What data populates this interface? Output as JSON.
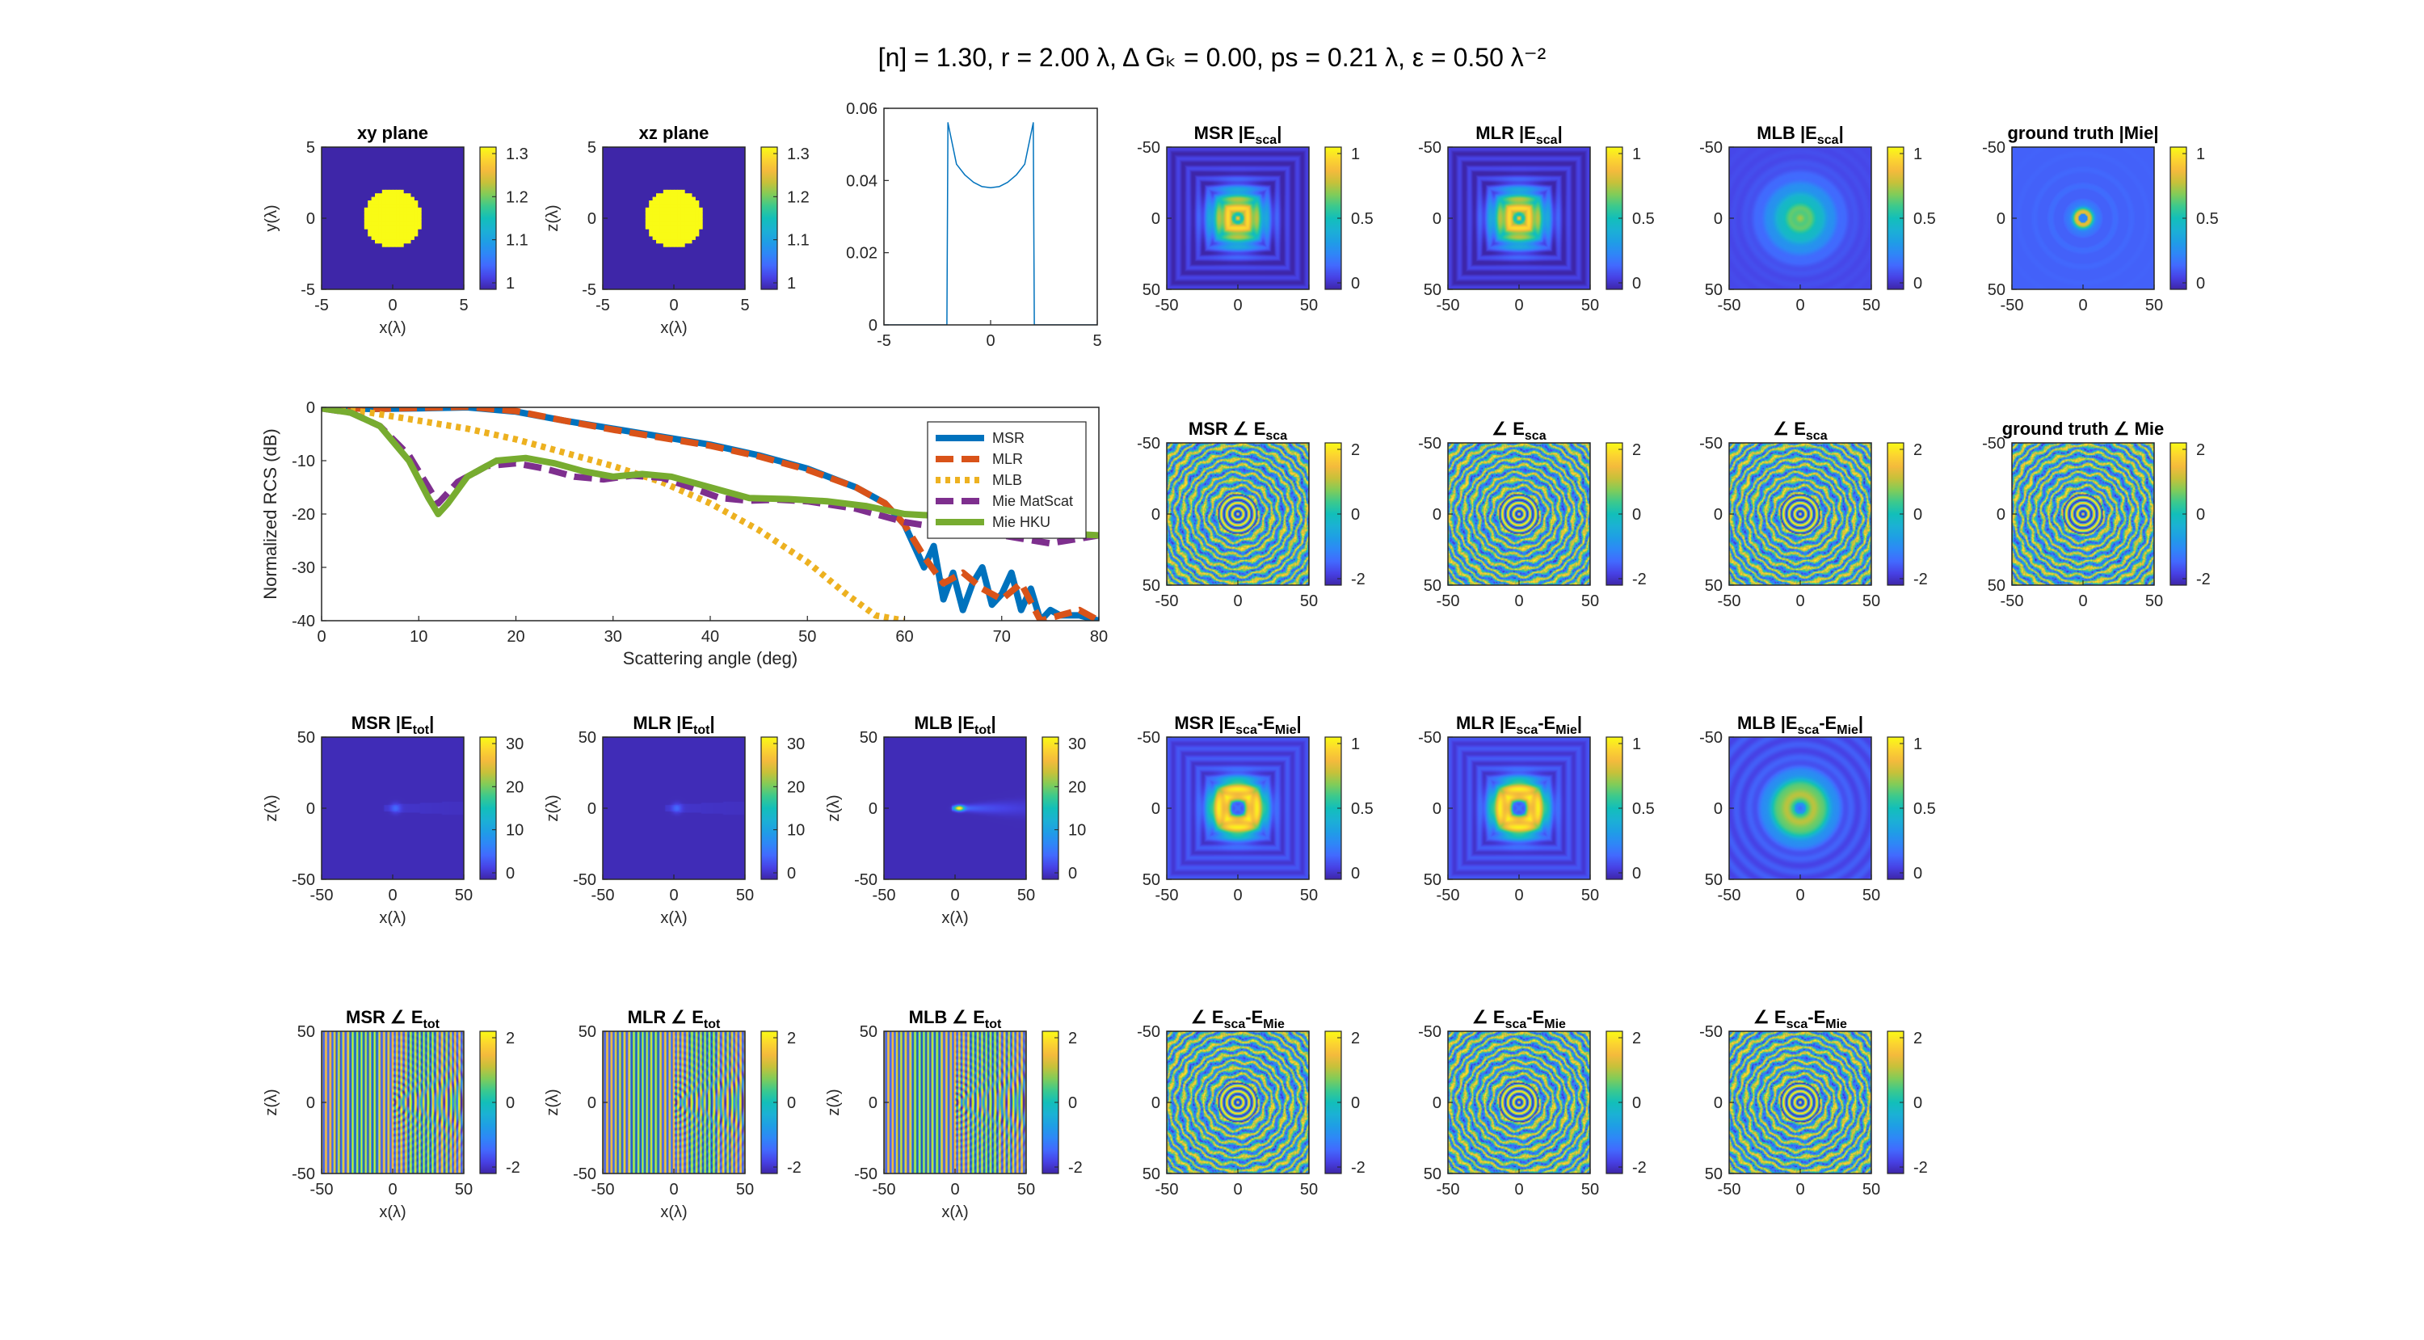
{
  "figure_title": "[n] = 1.30, r = 2.00 λ, Δ Gₖ = 0.00, ps = 0.21 λ, ε = 0.50 λ⁻²",
  "colors": {
    "parula": [
      "#3e26a8",
      "#4741e5",
      "#4269fe",
      "#2e87f7",
      "#1f9ee5",
      "#1bb1d4",
      "#12bfb9",
      "#3bc98e",
      "#81cc59",
      "#c6c13a",
      "#f4ba3c",
      "#fcd62f",
      "#f9fb15"
    ],
    "msr": "#0072bd",
    "mlr": "#d95319",
    "mlb": "#edb120",
    "mie_matscat": "#7e2f8e",
    "mie_hku": "#77ac30"
  },
  "chart_data": [
    {
      "id": "xy-plane",
      "type": "heatmap",
      "title": "xy plane",
      "xlabel": "x(λ)",
      "ylabel": "y(λ)",
      "xlim": [
        -5,
        5
      ],
      "ylim": [
        -5,
        5
      ],
      "xticks": [
        "-5",
        "0",
        "5"
      ],
      "yticks": [
        "5",
        "0",
        "-5"
      ],
      "colorbar": {
        "ticks": [
          "1.3",
          "1.2",
          "1.1",
          "1"
        ],
        "range": [
          1,
          1.3
        ]
      },
      "pattern": "disk",
      "disk_radius": 2,
      "inside_value": 1.3,
      "outside_value": 1.0
    },
    {
      "id": "xz-plane",
      "type": "heatmap",
      "title": "xz plane",
      "xlabel": "x(λ)",
      "ylabel": "z(λ)",
      "xlim": [
        -5,
        5
      ],
      "ylim": [
        -5,
        5
      ],
      "xticks": [
        "-5",
        "0",
        "5"
      ],
      "yticks": [
        "5",
        "0",
        "-5"
      ],
      "colorbar": {
        "ticks": [
          "1.3",
          "1.2",
          "1.1",
          "1"
        ],
        "range": [
          1,
          1.3
        ]
      },
      "pattern": "disk",
      "disk_radius": 2,
      "inside_value": 1.3,
      "outside_value": 1.0
    },
    {
      "id": "profile",
      "type": "line",
      "title": "",
      "xlim": [
        -5,
        5
      ],
      "ylim": [
        0,
        0.06
      ],
      "xticks": [
        "-5",
        "0",
        "5"
      ],
      "yticks": [
        "0.06",
        "0.04",
        "0.02",
        "0"
      ],
      "x": [
        -5,
        -2.05,
        -2.0,
        -1.6,
        -1.2,
        -0.8,
        -0.4,
        0,
        0.4,
        0.8,
        1.2,
        1.6,
        2.0,
        2.05,
        5
      ],
      "y": [
        0,
        0,
        0.056,
        0.0445,
        0.0415,
        0.0395,
        0.0383,
        0.038,
        0.0383,
        0.0395,
        0.0415,
        0.0445,
        0.056,
        0,
        0
      ]
    },
    {
      "id": "msr-esca",
      "type": "heatmap",
      "title": "MSR |E<sub>sca</sub>|",
      "xlim": [
        -50,
        50
      ],
      "ylim": [
        -50,
        50
      ],
      "xticks": [
        "-50",
        "0",
        "50"
      ],
      "yticks": [
        "-50",
        "0",
        "50"
      ],
      "colorbar": {
        "ticks": [
          "1",
          "0.5",
          "0"
        ],
        "range": [
          0,
          1.2
        ]
      },
      "pattern": "mag_square"
    },
    {
      "id": "mlr-esca",
      "type": "heatmap",
      "title": "MLR |E<sub>sca</sub>|",
      "xlim": [
        -50,
        50
      ],
      "ylim": [
        -50,
        50
      ],
      "xticks": [
        "-50",
        "0",
        "50"
      ],
      "yticks": [
        "-50",
        "0",
        "50"
      ],
      "colorbar": {
        "ticks": [
          "1",
          "0.5",
          "0"
        ],
        "range": [
          0,
          1.2
        ]
      },
      "pattern": "mag_square"
    },
    {
      "id": "mlb-esca",
      "type": "heatmap",
      "title": "MLB |E<sub>sca</sub>|",
      "xlim": [
        -50,
        50
      ],
      "ylim": [
        -50,
        50
      ],
      "xticks": [
        "-50",
        "0",
        "50"
      ],
      "yticks": [
        "-50",
        "0",
        "50"
      ],
      "colorbar": {
        "ticks": [
          "1",
          "0.5",
          "0"
        ],
        "range": [
          0,
          1.2
        ]
      },
      "pattern": "mag_soft"
    },
    {
      "id": "gt-mie-mag",
      "type": "heatmap",
      "title": "ground truth |Mie|",
      "xlim": [
        -50,
        50
      ],
      "ylim": [
        -50,
        50
      ],
      "xticks": [
        "-50",
        "0",
        "50"
      ],
      "yticks": [
        "-50",
        "0",
        "50"
      ],
      "colorbar": {
        "ticks": [
          "1",
          "0.5",
          "0"
        ],
        "range": [
          0,
          1.2
        ]
      },
      "pattern": "mag_rings"
    },
    {
      "id": "rcs",
      "type": "line",
      "title": "",
      "xlabel": "Scattering angle (deg)",
      "ylabel": "Normalized RCS (dB)",
      "xlim": [
        0,
        80
      ],
      "ylim": [
        -40,
        0
      ],
      "xticks": [
        "0",
        "10",
        "20",
        "30",
        "40",
        "50",
        "60",
        "70",
        "80"
      ],
      "yticks": [
        "0",
        "-10",
        "-20",
        "-30",
        "-40"
      ],
      "legend": {
        "position": "top-right"
      },
      "series": [
        {
          "name": "MSR",
          "style": "solid",
          "x": [
            0,
            5,
            10,
            15,
            20,
            25,
            30,
            35,
            40,
            45,
            50,
            55,
            58,
            60,
            62,
            63,
            64,
            65,
            66,
            67,
            68,
            69,
            70,
            71,
            72,
            73,
            74,
            75,
            76,
            78,
            80
          ],
          "y": [
            0,
            -0.3,
            -0.2,
            0,
            -0.8,
            -2.5,
            -4,
            -5.5,
            -7,
            -9,
            -11.5,
            -15,
            -18,
            -22,
            -30,
            -26,
            -36,
            -31,
            -38,
            -33,
            -30,
            -37,
            -35,
            -31,
            -38,
            -34,
            -40,
            -38,
            -39,
            -39,
            -40
          ]
        },
        {
          "name": "MLR",
          "style": "dashed",
          "x": [
            0,
            5,
            10,
            15,
            20,
            25,
            30,
            35,
            40,
            45,
            50,
            55,
            58,
            60,
            62,
            64,
            66,
            68,
            70,
            72,
            74,
            76,
            78,
            80
          ],
          "y": [
            0,
            -0.3,
            -0.1,
            0.1,
            -0.7,
            -2.5,
            -4.2,
            -5.7,
            -7.2,
            -9.2,
            -11.7,
            -15,
            -18,
            -22,
            -28,
            -33,
            -31,
            -34,
            -36,
            -33,
            -40,
            -39,
            -38,
            -40
          ]
        },
        {
          "name": "MLB",
          "style": "dotted",
          "x": [
            0,
            5,
            10,
            15,
            20,
            25,
            30,
            35,
            40,
            45,
            50,
            54,
            57,
            60
          ],
          "y": [
            0,
            -1,
            -2.5,
            -4,
            -6,
            -8.5,
            -11,
            -14,
            -18,
            -23,
            -29,
            -35,
            -39,
            -40
          ]
        },
        {
          "name": "Mie MatScat",
          "style": "dashed",
          "x": [
            0,
            3,
            6,
            9,
            11,
            12,
            14,
            17,
            20,
            23,
            26,
            29,
            32,
            35,
            38,
            41,
            44,
            47,
            50,
            55,
            60,
            65,
            70,
            75,
            80
          ],
          "y": [
            -0.2,
            -1,
            -3.5,
            -9,
            -15,
            -18,
            -14,
            -11,
            -10.5,
            -11.5,
            -13,
            -13.5,
            -12.8,
            -13.2,
            -15,
            -17,
            -17.5,
            -17.3,
            -17.6,
            -19,
            -21.5,
            -23,
            -24,
            -25.5,
            -24
          ]
        },
        {
          "name": "Mie HKU",
          "style": "solid",
          "x": [
            0,
            3,
            6,
            9,
            11,
            12,
            13,
            15,
            18,
            21,
            24,
            27,
            30,
            33,
            36,
            40,
            44,
            48,
            52,
            56,
            60,
            65,
            70,
            75,
            80
          ],
          "y": [
            -0.2,
            -1,
            -3.5,
            -10,
            -17,
            -20,
            -18,
            -13,
            -10,
            -9.5,
            -10.5,
            -12,
            -13,
            -12.5,
            -13,
            -15,
            -17,
            -17.2,
            -17.6,
            -18.5,
            -20,
            -20.5,
            -21.5,
            -23.5,
            -24
          ]
        }
      ]
    },
    {
      "id": "msr-esca-phase",
      "type": "heatmap",
      "title": "MSR ∠ E<sub>sca</sub>",
      "xlim": [
        -50,
        50
      ],
      "ylim": [
        -50,
        50
      ],
      "xticks": [
        "-50",
        "0",
        "50"
      ],
      "yticks": [
        "-50",
        "0",
        "50"
      ],
      "colorbar": {
        "ticks": [
          "2",
          "0",
          "-2"
        ],
        "range": [
          -3.14,
          3.14
        ]
      },
      "pattern": "phase"
    },
    {
      "id": "mlr-esca-phase",
      "type": "heatmap",
      "title": "∠ E<sub>sca</sub>",
      "xlim": [
        -50,
        50
      ],
      "ylim": [
        -50,
        50
      ],
      "xticks": [
        "-50",
        "0",
        "50"
      ],
      "yticks": [
        "-50",
        "0",
        "50"
      ],
      "colorbar": {
        "ticks": [
          "2",
          "0",
          "-2"
        ],
        "range": [
          -3.14,
          3.14
        ]
      },
      "pattern": "phase"
    },
    {
      "id": "mlb-esca-phase",
      "type": "heatmap",
      "title": "∠ E<sub>sca</sub>",
      "xlim": [
        -50,
        50
      ],
      "ylim": [
        -50,
        50
      ],
      "xticks": [
        "-50",
        "0",
        "50"
      ],
      "yticks": [
        "-50",
        "0",
        "50"
      ],
      "colorbar": {
        "ticks": [
          "2",
          "0",
          "-2"
        ],
        "range": [
          -3.14,
          3.14
        ]
      },
      "pattern": "phase"
    },
    {
      "id": "gt-mie-phase",
      "type": "heatmap",
      "title": "ground truth ∠ Mie",
      "xlim": [
        -50,
        50
      ],
      "ylim": [
        -50,
        50
      ],
      "xticks": [
        "-50",
        "0",
        "50"
      ],
      "yticks": [
        "-50",
        "0",
        "50"
      ],
      "colorbar": {
        "ticks": [
          "2",
          "0",
          "-2"
        ],
        "range": [
          -3.14,
          3.14
        ]
      },
      "pattern": "phase"
    },
    {
      "id": "msr-etot",
      "type": "heatmap",
      "title": "MSR |E<sub>tot</sub>|",
      "xlabel": "x(λ)",
      "ylabel": "z(λ)",
      "xlim": [
        -50,
        50
      ],
      "ylim": [
        -50,
        50
      ],
      "xticks": [
        "-50",
        "0",
        "50"
      ],
      "yticks": [
        "50",
        "0",
        "-50"
      ],
      "colorbar": {
        "ticks": [
          "30",
          "20",
          "10",
          "0"
        ],
        "range": [
          0,
          33
        ]
      },
      "pattern": "tot_weak"
    },
    {
      "id": "mlr-etot",
      "type": "heatmap",
      "title": "MLR |E<sub>tot</sub>|",
      "xlabel": "x(λ)",
      "ylabel": "z(λ)",
      "xlim": [
        -50,
        50
      ],
      "ylim": [
        -50,
        50
      ],
      "xticks": [
        "-50",
        "0",
        "50"
      ],
      "yticks": [
        "50",
        "0",
        "-50"
      ],
      "colorbar": {
        "ticks": [
          "30",
          "20",
          "10",
          "0"
        ],
        "range": [
          0,
          33
        ]
      },
      "pattern": "tot_weak"
    },
    {
      "id": "mlb-etot",
      "type": "heatmap",
      "title": "MLB |E<sub>tot</sub>|",
      "xlabel": "x(λ)",
      "ylabel": "z(λ)",
      "xlim": [
        -50,
        50
      ],
      "ylim": [
        -50,
        50
      ],
      "xticks": [
        "-50",
        "0",
        "50"
      ],
      "yticks": [
        "50",
        "0",
        "-50"
      ],
      "colorbar": {
        "ticks": [
          "30",
          "20",
          "10",
          "0"
        ],
        "range": [
          0,
          33
        ]
      },
      "pattern": "tot_strong"
    },
    {
      "id": "msr-diff-mag",
      "type": "heatmap",
      "title": "MSR |E<sub>sca</sub>-E<sub>Mie</sub>|",
      "xlim": [
        -50,
        50
      ],
      "ylim": [
        -50,
        50
      ],
      "xticks": [
        "-50",
        "0",
        "50"
      ],
      "yticks": [
        "-50",
        "0",
        "50"
      ],
      "colorbar": {
        "ticks": [
          "1",
          "0.5",
          "0"
        ],
        "range": [
          0,
          1.3
        ]
      },
      "pattern": "diff_ring"
    },
    {
      "id": "mlr-diff-mag",
      "type": "heatmap",
      "title": "MLR |E<sub>sca</sub>-E<sub>Mie</sub>|",
      "xlim": [
        -50,
        50
      ],
      "ylim": [
        -50,
        50
      ],
      "xticks": [
        "-50",
        "0",
        "50"
      ],
      "yticks": [
        "-50",
        "0",
        "50"
      ],
      "colorbar": {
        "ticks": [
          "1",
          "0.5",
          "0"
        ],
        "range": [
          0,
          1.3
        ]
      },
      "pattern": "diff_ring"
    },
    {
      "id": "mlb-diff-mag",
      "type": "heatmap",
      "title": "MLB |E<sub>sca</sub>-E<sub>Mie</sub>|",
      "xlim": [
        -50,
        50
      ],
      "ylim": [
        -50,
        50
      ],
      "xticks": [
        "-50",
        "0",
        "50"
      ],
      "yticks": [
        "-50",
        "0",
        "50"
      ],
      "colorbar": {
        "ticks": [
          "1",
          "0.5",
          "0"
        ],
        "range": [
          0,
          1.3
        ]
      },
      "pattern": "diff_soft"
    },
    {
      "id": "msr-etot-phase",
      "type": "heatmap",
      "title": "MSR ∠ E<sub>tot</sub>",
      "xlabel": "x(λ)",
      "ylabel": "z(λ)",
      "xlim": [
        -50,
        50
      ],
      "ylim": [
        -50,
        50
      ],
      "xticks": [
        "-50",
        "0",
        "50"
      ],
      "yticks": [
        "50",
        "0",
        "-50"
      ],
      "colorbar": {
        "ticks": [
          "2",
          "0",
          "-2"
        ],
        "range": [
          -3.14,
          3.14
        ]
      },
      "pattern": "stripes"
    },
    {
      "id": "mlr-etot-phase",
      "type": "heatmap",
      "title": "MLR ∠ E<sub>tot</sub>",
      "xlabel": "x(λ)",
      "ylabel": "z(λ)",
      "xlim": [
        -50,
        50
      ],
      "ylim": [
        -50,
        50
      ],
      "xticks": [
        "-50",
        "0",
        "50"
      ],
      "yticks": [
        "50",
        "0",
        "-50"
      ],
      "colorbar": {
        "ticks": [
          "2",
          "0",
          "-2"
        ],
        "range": [
          -3.14,
          3.14
        ]
      },
      "pattern": "stripes"
    },
    {
      "id": "mlb-etot-phase",
      "type": "heatmap",
      "title": "MLB ∠ E<sub>tot</sub>",
      "xlabel": "x(λ)",
      "ylabel": "z(λ)",
      "xlim": [
        -50,
        50
      ],
      "ylim": [
        -50,
        50
      ],
      "xticks": [
        "-50",
        "0",
        "50"
      ],
      "yticks": [
        "50",
        "0",
        "-50"
      ],
      "colorbar": {
        "ticks": [
          "2",
          "0",
          "-2"
        ],
        "range": [
          -3.14,
          3.14
        ]
      },
      "pattern": "stripes"
    },
    {
      "id": "msr-diff-phase",
      "type": "heatmap",
      "title": "∠ E<sub>sca</sub>-E<sub>Mie</sub>",
      "xlim": [
        -50,
        50
      ],
      "ylim": [
        -50,
        50
      ],
      "xticks": [
        "-50",
        "0",
        "50"
      ],
      "yticks": [
        "-50",
        "0",
        "50"
      ],
      "colorbar": {
        "ticks": [
          "2",
          "0",
          "-2"
        ],
        "range": [
          -3.14,
          3.14
        ]
      },
      "pattern": "phase"
    },
    {
      "id": "mlr-diff-phase",
      "type": "heatmap",
      "title": "∠ E<sub>sca</sub>-E<sub>Mie</sub>",
      "xlim": [
        -50,
        50
      ],
      "ylim": [
        -50,
        50
      ],
      "xticks": [
        "-50",
        "0",
        "50"
      ],
      "yticks": [
        "-50",
        "0",
        "50"
      ],
      "colorbar": {
        "ticks": [
          "2",
          "0",
          "-2"
        ],
        "range": [
          -3.14,
          3.14
        ]
      },
      "pattern": "phase"
    },
    {
      "id": "mlb-diff-phase",
      "type": "heatmap",
      "title": "∠ E<sub>sca</sub>-E<sub>Mie</sub>",
      "xlim": [
        -50,
        50
      ],
      "ylim": [
        -50,
        50
      ],
      "xticks": [
        "-50",
        "0",
        "50"
      ],
      "yticks": [
        "-50",
        "0",
        "50"
      ],
      "colorbar": {
        "ticks": [
          "2",
          "0",
          "-2"
        ],
        "range": [
          -3.14,
          3.14
        ]
      },
      "pattern": "phase"
    }
  ]
}
